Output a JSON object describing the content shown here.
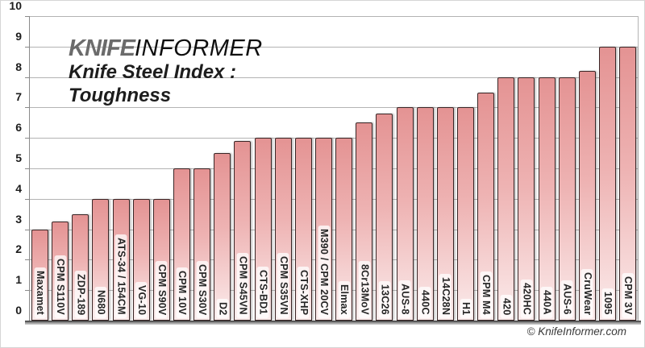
{
  "header": {
    "logo_primary": "KNIFE",
    "logo_secondary": "INFORMER",
    "title_line1": "Knife Steel Index :",
    "title_line2": "Toughness"
  },
  "footer": {
    "copyright": "© KnifeInformer.com"
  },
  "colors": {
    "bar_fill_top": "#e49393",
    "bar_fill_bottom": "#fbecec",
    "bar_border": "#3a2626",
    "gridline": "#b3b3b3",
    "axis": "#8a8a8a",
    "logo_gray": "#6b6b6b",
    "text_dark": "#1d1d1d"
  },
  "chart_data": {
    "type": "bar",
    "title": "Knife Steel Index : Toughness",
    "xlabel": "",
    "ylabel": "",
    "ylim": [
      0,
      10
    ],
    "ytick_step": 1,
    "grid": true,
    "legend": false,
    "categories": [
      "Maxamet",
      "CPM S110V",
      "ZDP-189",
      "N680",
      "ATS-34 / 154CM",
      "VG-10",
      "CPM S90V",
      "CPM 10V",
      "CPM S30V",
      "D2",
      "CPM S45VN",
      "CTS-BD1",
      "CPM S35VN",
      "CTS-XHP",
      "M390 / CPM 20CV",
      "Elmax",
      "8Cr13MoV",
      "13C26",
      "AUS-8",
      "440C",
      "14C28N",
      "H1",
      "CPM M4",
      "420",
      "420HC",
      "440A",
      "AUS-6",
      "CruWear",
      "1095",
      "CPM 3V"
    ],
    "values": [
      3,
      3.25,
      3.5,
      4,
      4,
      4,
      4,
      5,
      5,
      5.5,
      5.9,
      6,
      6,
      6,
      6,
      6,
      6.5,
      6.8,
      7,
      7,
      7,
      7,
      7.5,
      8,
      8,
      8,
      8,
      8.2,
      9,
      9
    ]
  }
}
